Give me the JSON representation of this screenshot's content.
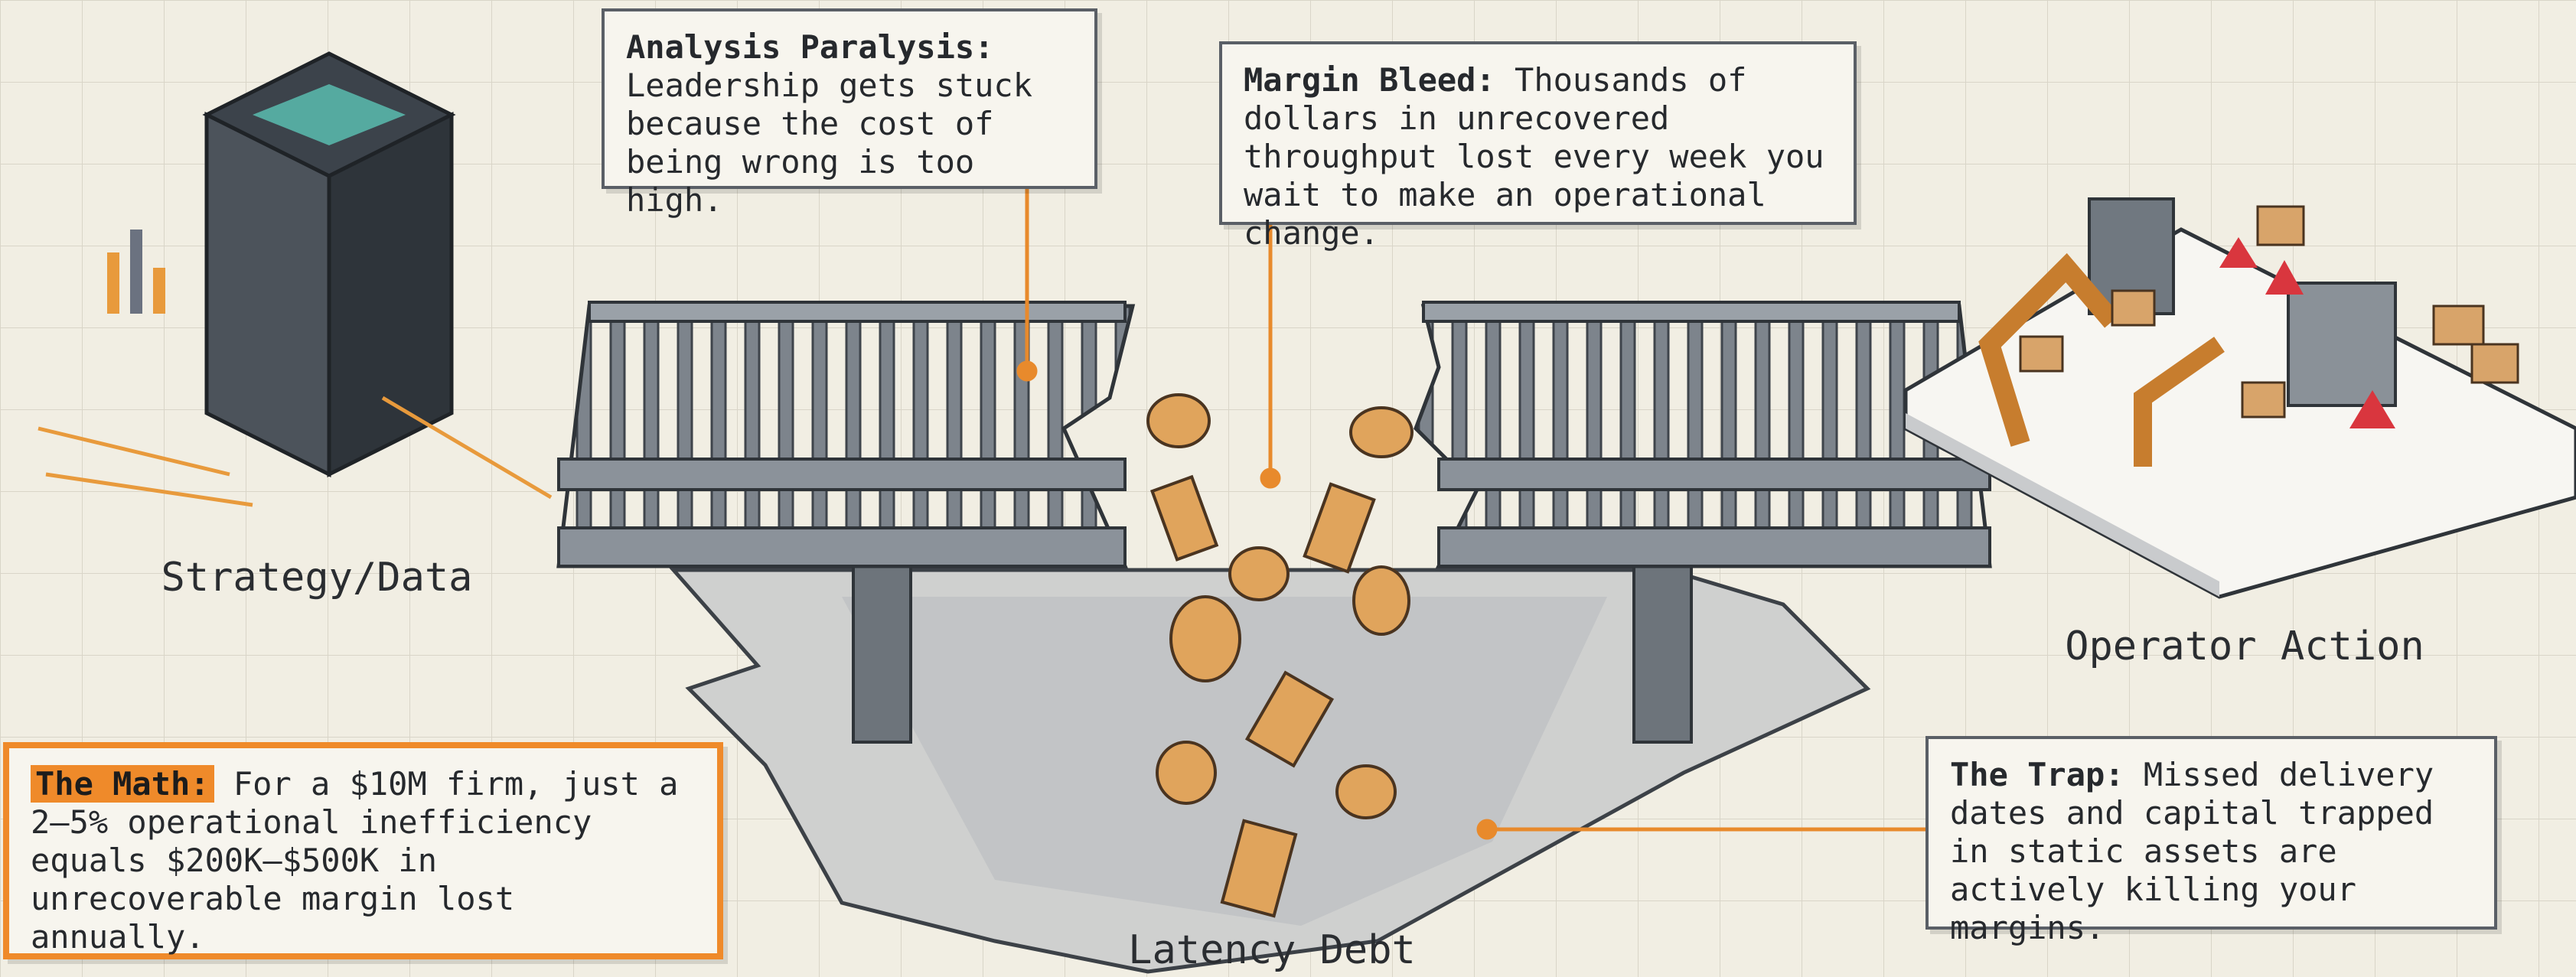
{
  "callouts": [
    {
      "title": "Analysis Paralysis:",
      "body": "Leadership gets stuck because the cost of being wrong is too high."
    },
    {
      "title": "Margin Bleed:",
      "body": "Thousands of dollars in unrecovered throughput lost every week you wait to make an operational change."
    },
    {
      "title": "The Math:",
      "body": "For a $10M firm, just a 2–5% operational inefficiency equals $200K–$500K in unrecoverable margin lost annually."
    },
    {
      "title": "The Trap:",
      "body": "Missed delivery dates and capital trapped in static assets are actively killing your margins."
    }
  ],
  "labels": {
    "left": "Strategy/Data",
    "right": "Operator Action",
    "gap": "Latency Debt"
  }
}
